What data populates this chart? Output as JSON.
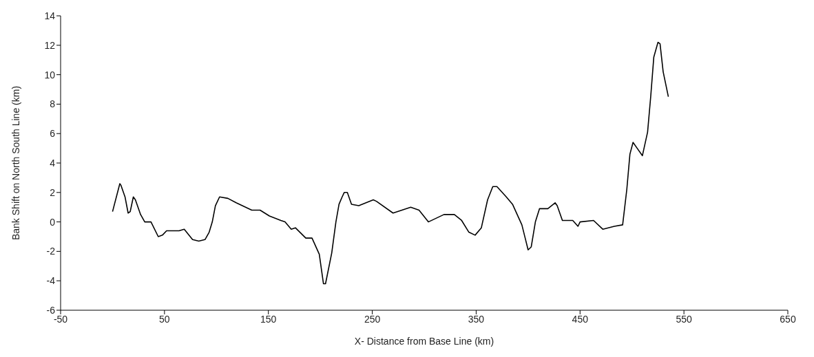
{
  "chart_data": {
    "type": "line",
    "xlabel": "X- Distance from Base Line (km)",
    "ylabel": "Bank Shift on North South Line (km)",
    "xlim": [
      -50,
      650
    ],
    "xticks": [
      -50,
      50,
      150,
      250,
      350,
      450,
      550,
      650
    ],
    "ylim": [
      -6,
      14
    ],
    "yticks": [
      -6,
      -4,
      -2,
      0,
      2,
      4,
      6,
      8,
      10,
      12,
      14
    ],
    "marker": "none",
    "line_style": "solid",
    "x": [
      0,
      7,
      8,
      12,
      15,
      17,
      20,
      22,
      27,
      31,
      37,
      44,
      48,
      52,
      64,
      69,
      77,
      83,
      89,
      93,
      96,
      99,
      103,
      111,
      119,
      134,
      142,
      151,
      162,
      166,
      172,
      176,
      186,
      192,
      199,
      203,
      205,
      211,
      215,
      218,
      221,
      223,
      226,
      230,
      237,
      251,
      254,
      270,
      287,
      295,
      304,
      319,
      329,
      336,
      343,
      349,
      355,
      361,
      366,
      370,
      379,
      385,
      394,
      400,
      403,
      407,
      411,
      419,
      426,
      428,
      433,
      443,
      448,
      450,
      463,
      472,
      483,
      491,
      495,
      498,
      501,
      505,
      510,
      515,
      518,
      521,
      525,
      527,
      530,
      535
    ],
    "series": [
      {
        "color": "#000000",
        "values": [
          0.7,
          2.6,
          2.5,
          1.7,
          0.6,
          0.7,
          1.7,
          1.5,
          0.5,
          0.0,
          0.0,
          -1.0,
          -0.9,
          -0.6,
          -0.6,
          -0.5,
          -1.2,
          -1.3,
          -1.2,
          -0.7,
          0.0,
          1.1,
          1.7,
          1.6,
          1.3,
          0.8,
          0.8,
          0.4,
          0.1,
          0.0,
          -0.5,
          -0.4,
          -1.1,
          -1.1,
          -2.2,
          -4.2,
          -4.2,
          -2.1,
          0.0,
          1.2,
          1.7,
          2.0,
          2.0,
          1.2,
          1.1,
          1.5,
          1.4,
          0.6,
          1.0,
          0.8,
          0.0,
          0.5,
          0.5,
          0.1,
          -0.7,
          -0.9,
          -0.4,
          1.5,
          2.4,
          2.4,
          1.7,
          1.2,
          -0.2,
          -1.9,
          -1.7,
          0.0,
          0.9,
          0.9,
          1.3,
          1.1,
          0.1,
          0.1,
          -0.3,
          0.0,
          0.1,
          -0.5,
          -0.3,
          -0.2,
          2.2,
          4.6,
          5.4,
          5.0,
          4.5,
          6.1,
          8.5,
          11.2,
          12.2,
          12.1,
          10.2,
          8.5
        ]
      }
    ]
  }
}
